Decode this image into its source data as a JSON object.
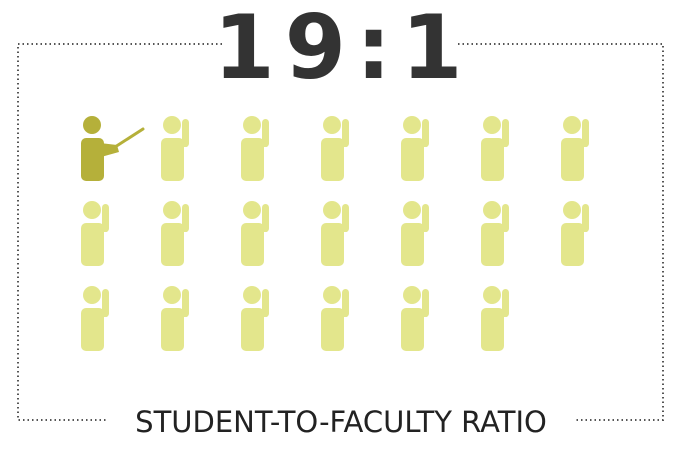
{
  "header": {
    "title": "19:1"
  },
  "footer": {
    "caption": "STUDENT-TO-FACULTY RATIO"
  }
}
